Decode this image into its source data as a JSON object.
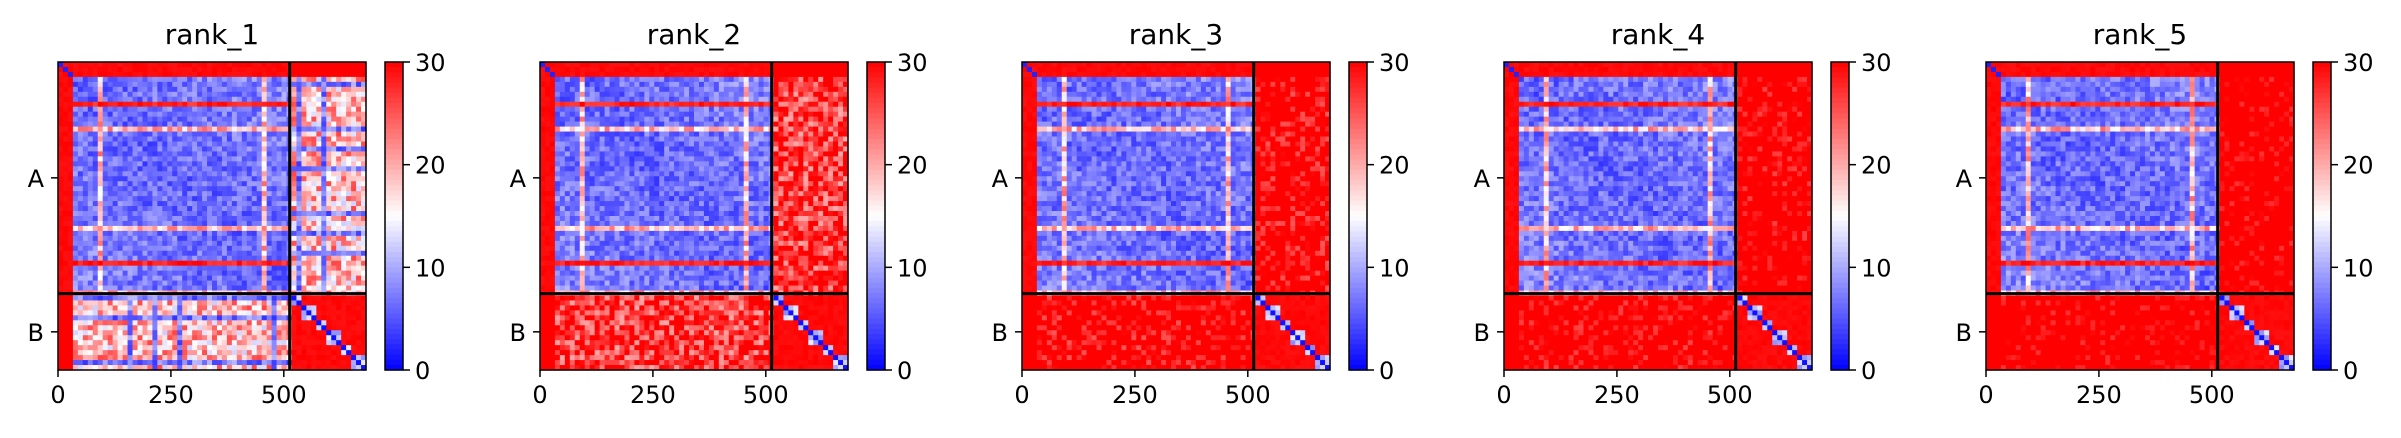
{
  "chart_data": [
    {
      "type": "heatmap",
      "title": "rank_1",
      "x_ticks": [
        "0",
        "250",
        "500"
      ],
      "y_chain_labels": [
        "A",
        "B"
      ],
      "chain_A_length": 513,
      "chain_B_length": 169,
      "total_length": 682,
      "colorbar": {
        "ticks": [
          "0",
          "10",
          "20",
          "30"
        ],
        "range": [
          0,
          30
        ],
        "colors": [
          "#0000ff",
          "#ffffff",
          "#ff0000"
        ]
      },
      "variant": 1
    },
    {
      "type": "heatmap",
      "title": "rank_2",
      "x_ticks": [
        "0",
        "250",
        "500"
      ],
      "y_chain_labels": [
        "A",
        "B"
      ],
      "chain_A_length": 513,
      "chain_B_length": 169,
      "total_length": 682,
      "colorbar": {
        "ticks": [
          "0",
          "10",
          "20",
          "30"
        ],
        "range": [
          0,
          30
        ],
        "colors": [
          "#0000ff",
          "#ffffff",
          "#ff0000"
        ]
      },
      "variant": 2
    },
    {
      "type": "heatmap",
      "title": "rank_3",
      "x_ticks": [
        "0",
        "250",
        "500"
      ],
      "y_chain_labels": [
        "A",
        "B"
      ],
      "chain_A_length": 513,
      "chain_B_length": 169,
      "total_length": 682,
      "colorbar": {
        "ticks": [
          "0",
          "10",
          "20",
          "30"
        ],
        "range": [
          0,
          30
        ],
        "colors": [
          "#0000ff",
          "#ffffff",
          "#ff0000"
        ]
      },
      "variant": 3
    },
    {
      "type": "heatmap",
      "title": "rank_4",
      "x_ticks": [
        "0",
        "250",
        "500"
      ],
      "y_chain_labels": [
        "A",
        "B"
      ],
      "chain_A_length": 513,
      "chain_B_length": 169,
      "total_length": 682,
      "colorbar": {
        "ticks": [
          "0",
          "10",
          "20",
          "30"
        ],
        "range": [
          0,
          30
        ],
        "colors": [
          "#0000ff",
          "#ffffff",
          "#ff0000"
        ]
      },
      "variant": 4
    },
    {
      "type": "heatmap",
      "title": "rank_5",
      "x_ticks": [
        "0",
        "250",
        "500"
      ],
      "y_chain_labels": [
        "A",
        "B"
      ],
      "chain_A_length": 513,
      "chain_B_length": 169,
      "total_length": 682,
      "colorbar": {
        "ticks": [
          "0",
          "10",
          "20",
          "30"
        ],
        "range": [
          0,
          30
        ],
        "colors": [
          "#0000ff",
          "#ffffff",
          "#ff0000"
        ]
      },
      "variant": 5
    }
  ]
}
